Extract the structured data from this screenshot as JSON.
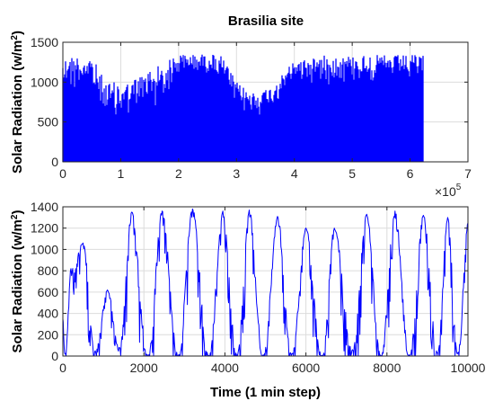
{
  "figure": {
    "title": "Brasilia site"
  },
  "chart_data": [
    {
      "type": "line",
      "title": "Brasilia site",
      "xlabel": "",
      "ylabel": "Solar Radiation (w/m",
      "ylabel_sup": "2",
      "ylabel_close": ")",
      "xlim": [
        0,
        7
      ],
      "ylim": [
        0,
        1500
      ],
      "x_ticks": [
        "0",
        "1",
        "2",
        "3",
        "4",
        "5",
        "6",
        "7"
      ],
      "y_ticks": [
        "0",
        "500",
        "1000",
        "1500"
      ],
      "x_scale_label": "×10",
      "x_scale_exp": "5",
      "grid": true,
      "color": "#0000ff",
      "x_data_end": 6.22,
      "envelope": {
        "x": [
          0.0,
          0.3,
          0.5,
          0.6,
          0.7,
          0.8,
          1.0,
          1.2,
          1.4,
          1.6,
          1.8,
          1.9,
          2.0,
          2.2,
          2.4,
          2.6,
          2.75,
          2.85,
          3.0,
          3.2,
          3.4,
          3.6,
          3.75,
          3.85,
          4.0,
          4.3,
          4.6,
          5.0,
          5.5,
          6.0,
          6.2
        ],
        "max": [
          1330,
          1340,
          1320,
          1200,
          1050,
          1000,
          1000,
          1020,
          1150,
          1200,
          1250,
          1330,
          1350,
          1350,
          1350,
          1350,
          1330,
          1200,
          1000,
          900,
          880,
          950,
          1050,
          1150,
          1280,
          1320,
          1340,
          1340,
          1340,
          1340,
          1340
        ],
        "lower": [
          900,
          850,
          750,
          650,
          550,
          500,
          480,
          520,
          580,
          650,
          750,
          900,
          1050,
          1080,
          1100,
          1050,
          950,
          800,
          620,
          550,
          560,
          620,
          700,
          800,
          930,
          950,
          960,
          950,
          950,
          950,
          940
        ]
      }
    },
    {
      "type": "line",
      "xlabel": "Time (1 min step)",
      "ylabel": "Solar Radiation (w/m",
      "ylabel_sup": "2",
      "ylabel_close": ")",
      "xlim": [
        0,
        10000
      ],
      "ylim": [
        0,
        1400
      ],
      "x_ticks": [
        "0",
        "2000",
        "4000",
        "6000",
        "8000",
        "10000"
      ],
      "y_ticks": [
        "0",
        "200",
        "400",
        "600",
        "800",
        "1000",
        "1200",
        "1400"
      ],
      "grid": true,
      "color": "#0000ff",
      "daily_peaks": [
        {
          "x": 0,
          "y": 350
        },
        {
          "x": 200,
          "y": 820
        },
        {
          "x": 500,
          "y": 1060
        },
        {
          "x": 1100,
          "y": 620
        },
        {
          "x": 1700,
          "y": 1350
        },
        {
          "x": 2450,
          "y": 1360
        },
        {
          "x": 3200,
          "y": 1380
        },
        {
          "x": 3950,
          "y": 1360
        },
        {
          "x": 4600,
          "y": 1370
        },
        {
          "x": 5300,
          "y": 1310
        },
        {
          "x": 6000,
          "y": 1200
        },
        {
          "x": 6700,
          "y": 1200
        },
        {
          "x": 7500,
          "y": 1330
        },
        {
          "x": 8200,
          "y": 1360
        },
        {
          "x": 8900,
          "y": 1320
        },
        {
          "x": 9500,
          "y": 1300
        },
        {
          "x": 10000,
          "y": 1250
        }
      ],
      "daily_troughs": [
        {
          "x": 50,
          "y": 20
        },
        {
          "x": 800,
          "y": 50
        },
        {
          "x": 1400,
          "y": 80
        },
        {
          "x": 2100,
          "y": 10
        },
        {
          "x": 2850,
          "y": 10
        },
        {
          "x": 3600,
          "y": 5
        },
        {
          "x": 4300,
          "y": 10
        },
        {
          "x": 4950,
          "y": 10
        },
        {
          "x": 5650,
          "y": 20
        },
        {
          "x": 6400,
          "y": 5
        },
        {
          "x": 7150,
          "y": 60
        },
        {
          "x": 7850,
          "y": 5
        },
        {
          "x": 8550,
          "y": 10
        },
        {
          "x": 9250,
          "y": 30
        },
        {
          "x": 9750,
          "y": 30
        }
      ]
    }
  ]
}
